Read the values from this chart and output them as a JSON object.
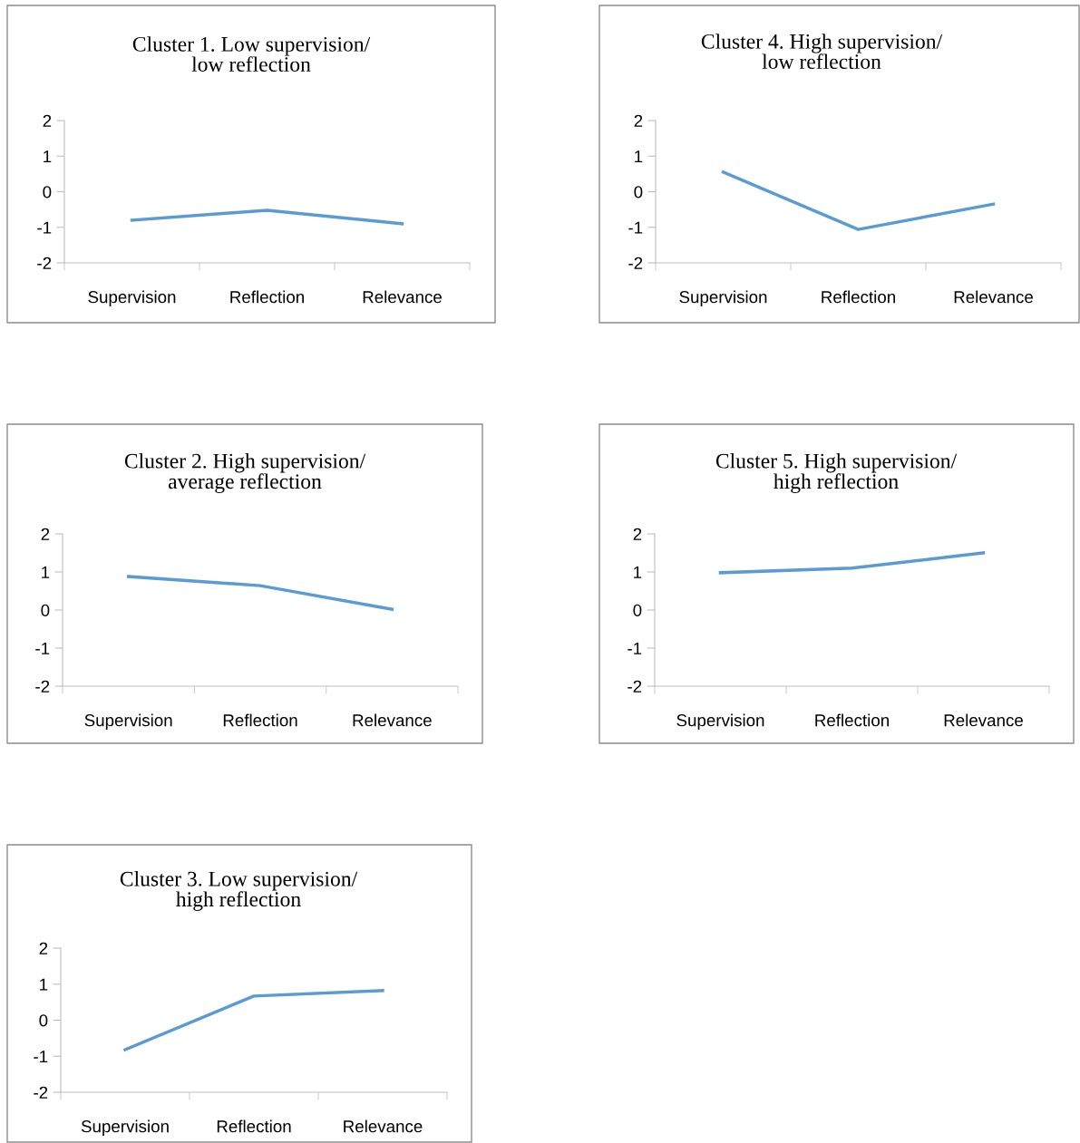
{
  "chart_data": [
    {
      "type": "line",
      "title": "Cluster 1. Low supervision/\nlow reflection",
      "categories": [
        "Supervision",
        "Reflection",
        "Relevance"
      ],
      "series": [
        {
          "color": "#5b9bd5",
          "values": [
            -0.8,
            -0.52,
            -0.9
          ]
        }
      ],
      "ylim": [
        -2,
        2
      ],
      "yticks": [
        -2,
        -1,
        0,
        1,
        2
      ],
      "grid": false,
      "marker": "none",
      "line_style": "solid"
    },
    {
      "type": "line",
      "title": "Cluster 4. High supervision/\nlow reflection",
      "categories": [
        "Supervision",
        "Reflection",
        "Relevance"
      ],
      "series": [
        {
          "color": "#5b9bd5",
          "values": [
            0.55,
            -1.06,
            -0.35
          ]
        }
      ],
      "ylim": [
        -2,
        2
      ],
      "yticks": [
        -2,
        -1,
        0,
        1,
        2
      ],
      "grid": false,
      "marker": "none",
      "line_style": "solid"
    },
    {
      "type": "line",
      "title": "Cluster 2. High supervision/\naverage reflection",
      "categories": [
        "Supervision",
        "Reflection",
        "Relevance"
      ],
      "series": [
        {
          "color": "#5b9bd5",
          "values": [
            0.88,
            0.64,
            0.02
          ]
        }
      ],
      "ylim": [
        -2,
        2
      ],
      "yticks": [
        -2,
        -1,
        0,
        1,
        2
      ],
      "grid": false,
      "marker": "none",
      "line_style": "solid"
    },
    {
      "type": "line",
      "title": "Cluster 5. High supervision/\nhigh reflection",
      "categories": [
        "Supervision",
        "Reflection",
        "Relevance"
      ],
      "series": [
        {
          "color": "#5b9bd5",
          "values": [
            0.98,
            1.1,
            1.5
          ]
        }
      ],
      "ylim": [
        -2,
        2
      ],
      "yticks": [
        -2,
        -1,
        0,
        1,
        2
      ],
      "grid": false,
      "marker": "none",
      "line_style": "solid"
    },
    {
      "type": "line",
      "title": "Cluster 3. Low supervision/\nhigh reflection",
      "categories": [
        "Supervision",
        "Reflection",
        "Relevance"
      ],
      "series": [
        {
          "color": "#5b9bd5",
          "values": [
            -0.82,
            0.67,
            0.82
          ]
        }
      ],
      "ylim": [
        -2,
        2
      ],
      "yticks": [
        -2,
        -1,
        0,
        1,
        2
      ],
      "grid": false,
      "marker": "none",
      "line_style": "solid"
    }
  ]
}
